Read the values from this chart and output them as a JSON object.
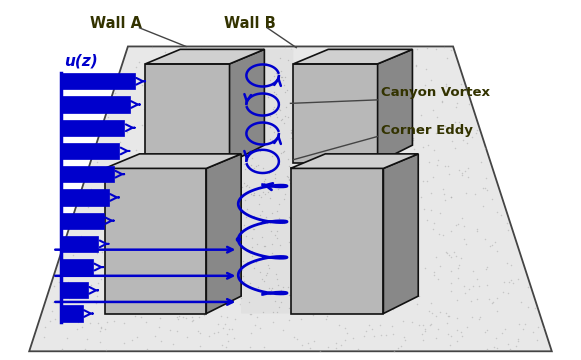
{
  "bg_color": "#ffffff",
  "ground_color": "#e8e8e8",
  "wall_face_color": "#b8b8b8",
  "wall_side_color": "#888888",
  "wall_top_color": "#d0d0d0",
  "arrow_color": "#0000cc",
  "label_color": "#333300",
  "label_wall_a": "Wall A",
  "label_wall_b": "Wall B",
  "label_uz": "u(z)",
  "label_canyon": "Canyon Vortex",
  "label_corner": "Corner Eddy",
  "figsize": [
    5.81,
    3.6
  ],
  "dpi": 100
}
